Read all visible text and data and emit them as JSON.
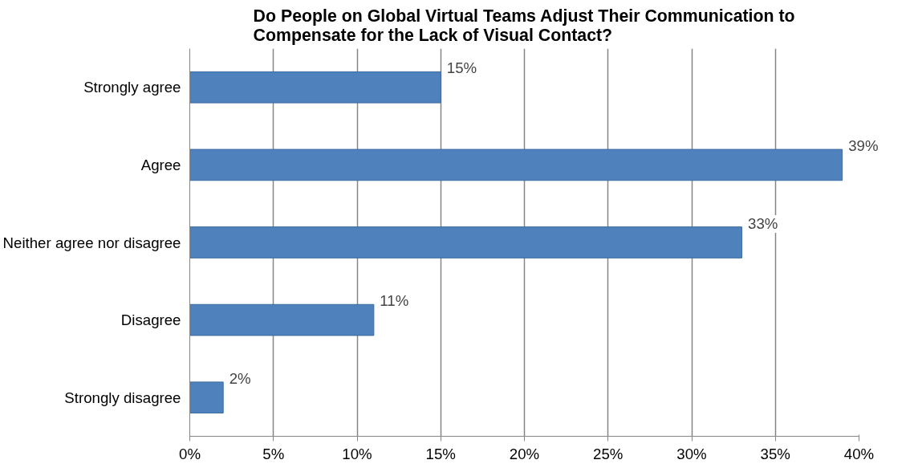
{
  "chart_data": {
    "type": "bar",
    "orientation": "horizontal",
    "title": "Do People on Global Virtual Teams Adjust Their Communication to\nCompensate for the Lack of Visual Contact?",
    "categories": [
      "Strongly agree",
      "Agree",
      "Neither agree nor disagree",
      "Disagree",
      "Strongly disagree"
    ],
    "values": [
      15,
      39,
      33,
      11,
      2
    ],
    "color": "#4f81bd",
    "value_labels": [
      "15%",
      "39%",
      "33%",
      "11%",
      "2%"
    ],
    "xlim": [
      0,
      40
    ],
    "xticks": [
      {
        "value": 0,
        "label": "0%"
      },
      {
        "value": 5,
        "label": "5%"
      },
      {
        "value": 10,
        "label": "10%"
      },
      {
        "value": 15,
        "label": "15%"
      },
      {
        "value": 20,
        "label": "20%"
      },
      {
        "value": 25,
        "label": "25%"
      },
      {
        "value": 30,
        "label": "30%"
      },
      {
        "value": 35,
        "label": "35%"
      },
      {
        "value": 40,
        "label": "40%"
      }
    ],
    "grid": "x"
  }
}
